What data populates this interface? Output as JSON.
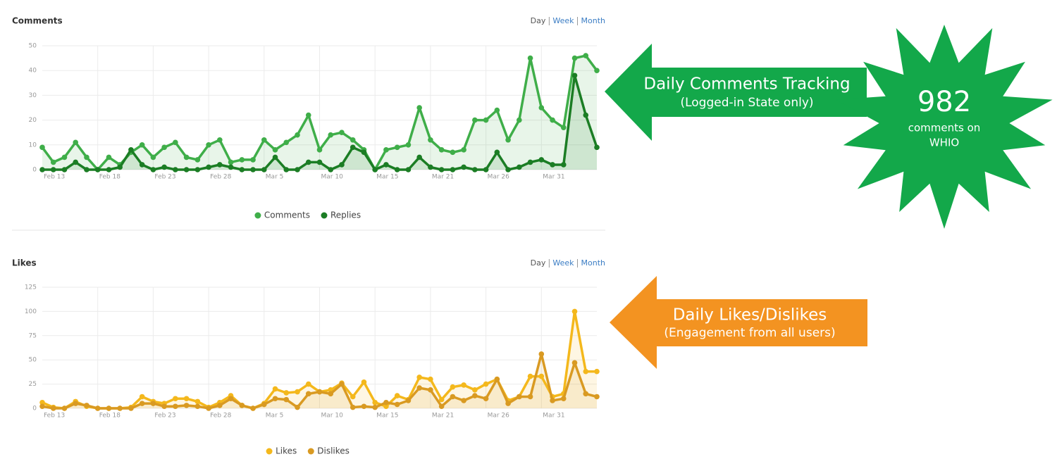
{
  "chart_data": [
    {
      "type": "line",
      "title": "Comments",
      "period_options": [
        "Day",
        "Week",
        "Month"
      ],
      "categories": [
        "Feb 13",
        null,
        null,
        null,
        null,
        "Feb 18",
        null,
        null,
        null,
        null,
        "Feb 23",
        null,
        null,
        null,
        null,
        "Feb 28",
        null,
        null,
        null,
        null,
        "Mar 5",
        null,
        null,
        null,
        null,
        "Mar 10",
        null,
        null,
        null,
        null,
        "Mar 15",
        null,
        null,
        null,
        null,
        "Mar 21",
        null,
        null,
        null,
        null,
        "Mar 26",
        null,
        null,
        null,
        null,
        "Mar 31",
        null,
        null,
        null,
        null,
        null
      ],
      "series": [
        {
          "name": "Comments",
          "color": "#3fae49",
          "values": [
            9,
            3,
            5,
            11,
            5,
            0,
            5,
            2,
            7,
            10,
            5,
            9,
            11,
            5,
            4,
            10,
            12,
            3,
            4,
            4,
            12,
            8,
            11,
            14,
            22,
            8,
            14,
            15,
            12,
            8,
            0,
            8,
            9,
            10,
            25,
            12,
            8,
            7,
            8,
            20,
            20,
            24,
            12,
            20,
            45,
            25,
            20,
            17,
            45,
            46,
            40
          ]
        },
        {
          "name": "Replies",
          "color": "#1b7d24",
          "values": [
            0,
            0,
            0,
            3,
            0,
            0,
            0,
            1,
            8,
            2,
            0,
            1,
            0,
            0,
            0,
            1,
            2,
            1,
            0,
            0,
            0,
            5,
            0,
            0,
            3,
            3,
            0,
            2,
            9,
            7,
            0,
            2,
            0,
            0,
            5,
            1,
            0,
            0,
            1,
            0,
            0,
            7,
            0,
            1,
            3,
            4,
            2,
            2,
            38,
            22,
            9
          ]
        }
      ],
      "ylim": [
        0,
        50
      ],
      "yticks": [
        0,
        10,
        20,
        30,
        40,
        50
      ],
      "grid": true,
      "legend": "bottom"
    },
    {
      "type": "line",
      "title": "Likes",
      "period_options": [
        "Day",
        "Week",
        "Month"
      ],
      "categories": [
        "Feb 13",
        null,
        null,
        null,
        null,
        "Feb 18",
        null,
        null,
        null,
        null,
        "Feb 23",
        null,
        null,
        null,
        null,
        "Feb 28",
        null,
        null,
        null,
        null,
        "Mar 5",
        null,
        null,
        null,
        null,
        "Mar 10",
        null,
        null,
        null,
        null,
        "Mar 15",
        null,
        null,
        null,
        null,
        "Mar 21",
        null,
        null,
        null,
        null,
        "Mar 26",
        null,
        null,
        null,
        null,
        "Mar 31",
        null,
        null,
        null,
        null,
        null
      ],
      "series": [
        {
          "name": "Likes",
          "color": "#f4b81c",
          "values": [
            6,
            1,
            0,
            7,
            2,
            0,
            0,
            0,
            1,
            12,
            7,
            5,
            10,
            10,
            7,
            1,
            6,
            13,
            3,
            0,
            5,
            20,
            16,
            17,
            25,
            17,
            19,
            26,
            12,
            27,
            6,
            2,
            13,
            9,
            32,
            30,
            9,
            22,
            24,
            19,
            25,
            30,
            8,
            12,
            33,
            33,
            12,
            15,
            100,
            38,
            38
          ]
        },
        {
          "name": "Dislikes",
          "color": "#d99a22",
          "values": [
            2,
            0,
            0,
            5,
            3,
            0,
            0,
            0,
            0,
            5,
            5,
            2,
            2,
            3,
            2,
            0,
            3,
            10,
            3,
            0,
            4,
            10,
            9,
            1,
            15,
            17,
            15,
            25,
            1,
            2,
            1,
            6,
            4,
            8,
            21,
            19,
            2,
            12,
            8,
            13,
            10,
            30,
            5,
            12,
            12,
            56,
            8,
            10,
            47,
            15,
            12
          ]
        }
      ],
      "ylim": [
        0,
        125
      ],
      "yticks": [
        0,
        25,
        50,
        75,
        100,
        125
      ],
      "grid": true,
      "legend": "bottom"
    }
  ],
  "callouts": [
    {
      "title": "Daily Comments Tracking",
      "subtitle": "(Logged-in State only)",
      "color": "#13a84a"
    },
    {
      "title": "Daily Likes/Dislikes",
      "subtitle": "(Engagement from all users)",
      "color": "#f39321"
    }
  ],
  "badge": {
    "number": 982,
    "lines": [
      "comments on",
      "WHIO"
    ],
    "color": "#13a84a"
  }
}
